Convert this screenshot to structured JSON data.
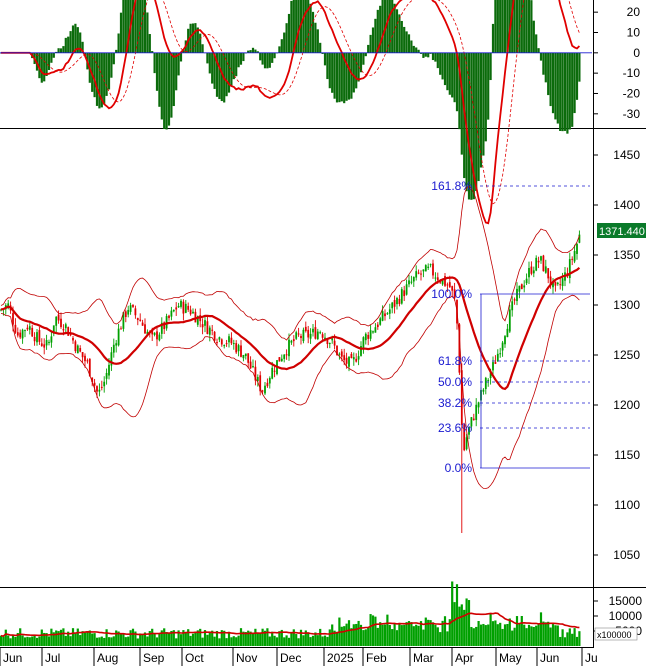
{
  "chart_data": [
    {
      "panel": "macd",
      "type": "bar",
      "y_ticks": [
        "20",
        "10",
        "0",
        "-10",
        "-20",
        "-30"
      ],
      "y_tick_values": [
        20,
        10,
        0,
        -10,
        -20,
        -30
      ],
      "ylim": [
        -36,
        25
      ],
      "histogram_color": "#0b6b0b",
      "line_color": "#e00000",
      "signal_style": "dashed"
    },
    {
      "panel": "price",
      "type": "candlestick",
      "y_ticks": [
        "1450",
        "1400",
        "1350",
        "1300",
        "1250",
        "1200",
        "1150",
        "1100",
        "1050"
      ],
      "y_tick_values": [
        1450,
        1400,
        1350,
        1300,
        1250,
        1200,
        1150,
        1100,
        1050
      ],
      "ylim": [
        1020,
        1462
      ],
      "last_price_label": "1371.440",
      "last_price": 1371.44,
      "up_color": "#00a000",
      "down_color": "#e00000",
      "ma_color": "#d00000",
      "band_color": "#c00000",
      "fibonacci": [
        {
          "label": "161.8%",
          "value": 1419
        },
        {
          "label": "100.0%",
          "value": 1311
        },
        {
          "label": "61.8%",
          "value": 1244
        },
        {
          "label": "50.0%",
          "value": 1223
        },
        {
          "label": "38.2%",
          "value": 1202
        },
        {
          "label": "23.6%",
          "value": 1177
        },
        {
          "label": "0.0%",
          "value": 1137
        }
      ],
      "fib_color": "#1a1ad0"
    },
    {
      "panel": "volume",
      "type": "bar",
      "y_ticks": [
        "15000",
        "10000",
        "5000"
      ],
      "y_tick_values": [
        15000,
        10000,
        5000
      ],
      "unit_label": "x100000",
      "ylim": [
        0,
        19000
      ],
      "bar_color": "#00a000",
      "ma_color": "#d00000"
    }
  ],
  "x_axis": {
    "months": [
      "Jun",
      "Jul",
      "Aug",
      "Sep",
      "Oct",
      "Nov",
      "Dec",
      "2025",
      "Feb",
      "Mar",
      "Apr",
      "May",
      "Jun",
      "Ju"
    ]
  }
}
